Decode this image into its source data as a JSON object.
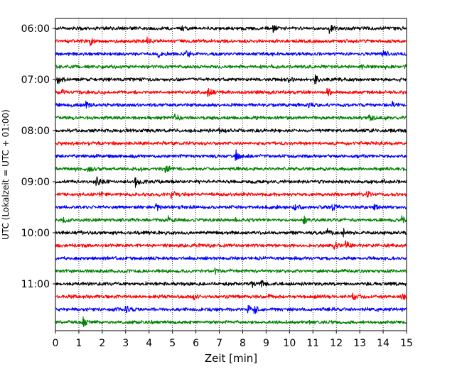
{
  "chart_data": {
    "type": "line",
    "title": "",
    "xlabel": "Zeit  [min]",
    "ylabel": "UTC (Lokalzeit = UTC + 01:00)",
    "xlim": [
      0,
      15
    ],
    "xticks": [
      0,
      1,
      2,
      3,
      4,
      5,
      6,
      7,
      8,
      9,
      10,
      11,
      12,
      13,
      14,
      15
    ],
    "xgrid": "dotted vertical lines at each minute",
    "row_interval_minutes": 15,
    "row_start": "06:00",
    "row_count": 24,
    "ytick_labels": [
      "06:00",
      "07:00",
      "08:00",
      "09:00",
      "10:00",
      "11:00"
    ],
    "ytick_rows": [
      0,
      4,
      8,
      12,
      16,
      20
    ],
    "color_cycle": [
      "#000000",
      "#ff0000",
      "#0000ff",
      "#008000"
    ],
    "legend": "none",
    "series_note": "Seismic helicorder traces; each row is 15 minutes of continuous ground motion data.",
    "events": [
      {
        "row": 0,
        "x": 11.7,
        "amp": 0.9
      },
      {
        "row": 0,
        "x": 9.3,
        "amp": 0.5
      },
      {
        "row": 0,
        "x": 5.4,
        "amp": 0.4
      },
      {
        "row": 1,
        "x": 1.45,
        "amp": 1.0
      },
      {
        "row": 1,
        "x": 3.9,
        "amp": 0.5
      },
      {
        "row": 2,
        "x": 4.4,
        "amp": 0.6
      },
      {
        "row": 2,
        "x": 5.6,
        "amp": 0.6
      },
      {
        "row": 2,
        "x": 14.0,
        "amp": 0.4
      },
      {
        "row": 3,
        "x": 13.1,
        "amp": 0.4
      },
      {
        "row": 3,
        "x": 14.9,
        "amp": 0.5
      },
      {
        "row": 4,
        "x": 0.1,
        "amp": 0.7
      },
      {
        "row": 4,
        "x": 9.9,
        "amp": 0.6
      },
      {
        "row": 4,
        "x": 11.1,
        "amp": 0.9
      },
      {
        "row": 5,
        "x": 0.3,
        "amp": 0.5
      },
      {
        "row": 5,
        "x": 6.5,
        "amp": 0.6
      },
      {
        "row": 5,
        "x": 11.6,
        "amp": 0.9
      },
      {
        "row": 6,
        "x": 1.3,
        "amp": 0.5
      },
      {
        "row": 6,
        "x": 10.8,
        "amp": 0.4
      },
      {
        "row": 6,
        "x": 14.4,
        "amp": 0.4
      },
      {
        "row": 7,
        "x": 5.1,
        "amp": 0.5
      },
      {
        "row": 7,
        "x": 13.4,
        "amp": 0.6
      },
      {
        "row": 8,
        "x": 7.0,
        "amp": 0.4
      },
      {
        "row": 10,
        "x": 7.7,
        "amp": 0.9
      },
      {
        "row": 11,
        "x": 1.4,
        "amp": 0.6
      },
      {
        "row": 11,
        "x": 4.7,
        "amp": 0.5
      },
      {
        "row": 12,
        "x": 1.75,
        "amp": 1.0
      },
      {
        "row": 12,
        "x": 3.4,
        "amp": 0.9
      },
      {
        "row": 13,
        "x": 1.9,
        "amp": 0.5
      },
      {
        "row": 13,
        "x": 4.95,
        "amp": 1.0
      },
      {
        "row": 13,
        "x": 13.3,
        "amp": 0.5
      },
      {
        "row": 14,
        "x": 4.3,
        "amp": 0.9
      },
      {
        "row": 14,
        "x": 10.2,
        "amp": 0.5
      },
      {
        "row": 14,
        "x": 11.8,
        "amp": 0.7
      },
      {
        "row": 14,
        "x": 13.6,
        "amp": 0.5
      },
      {
        "row": 15,
        "x": 0.3,
        "amp": 0.5
      },
      {
        "row": 15,
        "x": 4.8,
        "amp": 0.6
      },
      {
        "row": 15,
        "x": 10.6,
        "amp": 0.8
      },
      {
        "row": 15,
        "x": 14.8,
        "amp": 0.7
      },
      {
        "row": 16,
        "x": 11.6,
        "amp": 0.6
      },
      {
        "row": 16,
        "x": 12.3,
        "amp": 0.7
      },
      {
        "row": 17,
        "x": 11.9,
        "amp": 0.6
      },
      {
        "row": 17,
        "x": 12.4,
        "amp": 0.9
      },
      {
        "row": 19,
        "x": 6.8,
        "amp": 0.4
      },
      {
        "row": 20,
        "x": 8.8,
        "amp": 0.8
      },
      {
        "row": 20,
        "x": 8.4,
        "amp": 0.5
      },
      {
        "row": 21,
        "x": 5.9,
        "amp": 0.6
      },
      {
        "row": 21,
        "x": 9.1,
        "amp": 0.5
      },
      {
        "row": 21,
        "x": 12.7,
        "amp": 0.6
      },
      {
        "row": 21,
        "x": 14.8,
        "amp": 0.7
      },
      {
        "row": 22,
        "x": 2.5,
        "amp": 0.8
      },
      {
        "row": 22,
        "x": 3.0,
        "amp": 0.6
      },
      {
        "row": 22,
        "x": 8.2,
        "amp": 0.9
      },
      {
        "row": 22,
        "x": 8.5,
        "amp": 0.8
      },
      {
        "row": 23,
        "x": 1.15,
        "amp": 0.9
      }
    ]
  }
}
